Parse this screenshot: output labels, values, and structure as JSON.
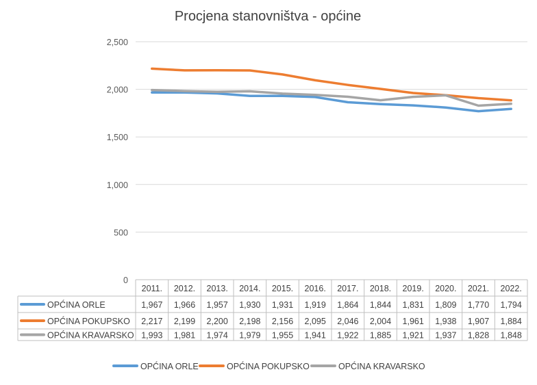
{
  "chart_data": {
    "type": "line",
    "title": "Procjena stanovništva - općine",
    "categories": [
      "2011.",
      "2012.",
      "2013.",
      "2014.",
      "2015.",
      "2016.",
      "2017.",
      "2018.",
      "2019.",
      "2020.",
      "2021.",
      "2022."
    ],
    "yticks": [
      "0",
      "500",
      "1,000",
      "1,500",
      "2,000",
      "2,500"
    ],
    "ylim": [
      0,
      2500
    ],
    "grid": true,
    "legend_position": "bottom",
    "data_table": true,
    "series": [
      {
        "name": "OPĆINA ORLE",
        "color": "#5b9bd5",
        "values": [
          1967,
          1966,
          1957,
          1930,
          1931,
          1919,
          1864,
          1844,
          1831,
          1809,
          1770,
          1794
        ],
        "labels": [
          "1,967",
          "1,966",
          "1,957",
          "1,930",
          "1,931",
          "1,919",
          "1,864",
          "1,844",
          "1,831",
          "1,809",
          "1,770",
          "1,794"
        ]
      },
      {
        "name": "OPĆINA POKUPSKO",
        "color": "#ed7d31",
        "values": [
          2217,
          2199,
          2200,
          2198,
          2156,
          2095,
          2046,
          2004,
          1961,
          1938,
          1907,
          1884
        ],
        "labels": [
          "2,217",
          "2,199",
          "2,200",
          "2,198",
          "2,156",
          "2,095",
          "2,046",
          "2,004",
          "1,961",
          "1,938",
          "1,907",
          "1,884"
        ]
      },
      {
        "name": "OPĆINA KRAVARSKO",
        "color": "#a5a5a5",
        "values": [
          1993,
          1981,
          1974,
          1979,
          1955,
          1941,
          1922,
          1885,
          1921,
          1937,
          1828,
          1848
        ],
        "labels": [
          "1,993",
          "1,981",
          "1,974",
          "1,979",
          "1,955",
          "1,941",
          "1,922",
          "1,885",
          "1,921",
          "1,937",
          "1,828",
          "1,848"
        ]
      }
    ]
  }
}
